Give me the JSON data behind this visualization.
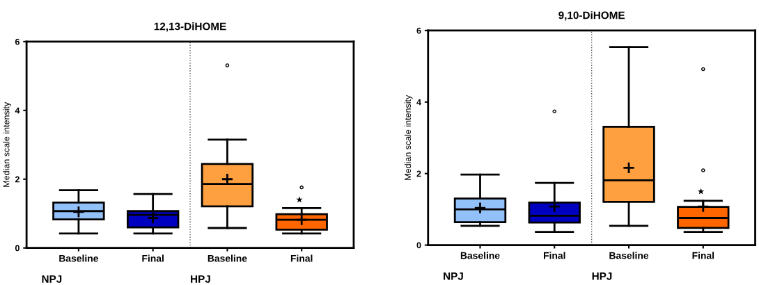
{
  "chart_data": [
    {
      "type": "box",
      "title": "12,13-DiHOME",
      "ylabel": "Median scale intensity",
      "categories": [
        "Baseline",
        "Final",
        "Baseline",
        "Final"
      ],
      "colors": [
        "#92c0f8",
        "#0000c0",
        "#ffa040",
        "#ff6600"
      ],
      "boxes": [
        {
          "low": 0.42,
          "q1": 0.83,
          "median": 1.07,
          "q3": 1.32,
          "high": 1.68,
          "mean": 1.05
        },
        {
          "low": 0.42,
          "q1": 0.6,
          "median": 0.96,
          "q3": 1.07,
          "high": 1.57,
          "mean": 0.87
        },
        {
          "low": 0.58,
          "q1": 1.21,
          "median": 1.86,
          "q3": 2.44,
          "high": 3.15,
          "mean": 2.0,
          "outliers": [
            5.31
          ]
        },
        {
          "low": 0.42,
          "q1": 0.53,
          "median": 0.82,
          "q3": 0.98,
          "high": 1.16,
          "mean": 0.82,
          "outliers": [
            1.76
          ]
        }
      ],
      "ylim": [
        0,
        6
      ],
      "yticks": [
        0,
        2,
        4,
        6
      ],
      "grid": false,
      "annotations": [
        "NPJ",
        "HPJ",
        "★"
      ]
    },
    {
      "type": "box",
      "title": "9,10-DiHOME",
      "ylabel": "Median scale intensity",
      "categories": [
        "Baseline",
        "Final",
        "Baseline",
        "Final"
      ],
      "colors": [
        "#92c0f8",
        "#0000c0",
        "#ffa040",
        "#ff6600"
      ],
      "boxes": [
        {
          "low": 0.54,
          "q1": 0.64,
          "median": 1.0,
          "q3": 1.3,
          "high": 1.97,
          "mean": 1.04
        },
        {
          "low": 0.37,
          "q1": 0.63,
          "median": 0.82,
          "q3": 1.19,
          "high": 1.74,
          "mean": 1.08,
          "outliers": [
            3.74
          ]
        },
        {
          "low": 0.54,
          "q1": 1.21,
          "median": 1.81,
          "q3": 3.31,
          "high": 5.54,
          "mean": 2.16
        },
        {
          "low": 0.37,
          "q1": 0.48,
          "median": 0.76,
          "q3": 1.07,
          "high": 1.24,
          "mean": 1.08,
          "outliers": [
            4.92,
            2.09
          ]
        }
      ],
      "ylim": [
        0,
        6
      ],
      "yticks": [
        0,
        2,
        4,
        6
      ],
      "grid": false,
      "annotations": [
        "NPJ",
        "HPJ",
        "★"
      ]
    }
  ]
}
